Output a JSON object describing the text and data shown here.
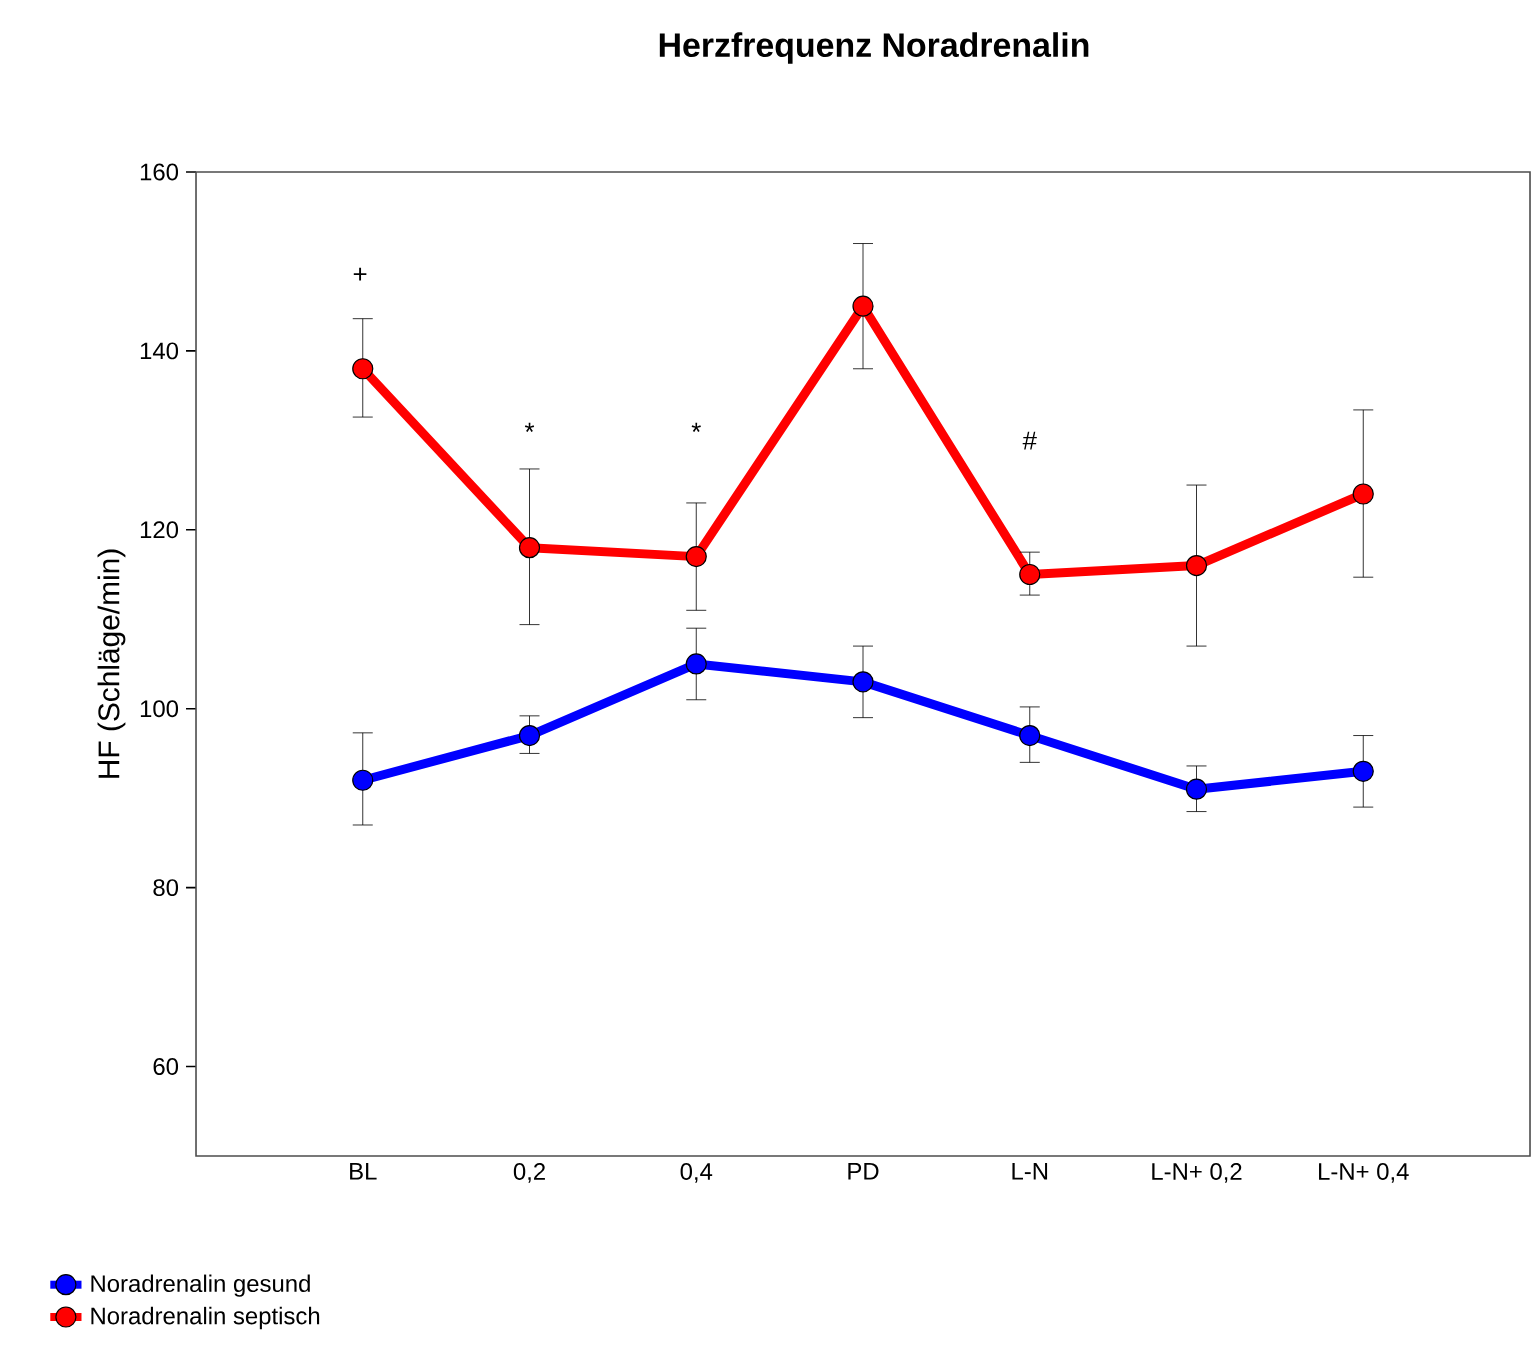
{
  "chart_data": {
    "type": "line",
    "title": "Herzfrequenz Noradrenalin",
    "ylabel": "HF (Schläge/min)",
    "categories": [
      "BL",
      "0,2",
      "0,4",
      "PD",
      "L-N",
      "L-N+ 0,2",
      "L-N+ 0,4"
    ],
    "series": [
      {
        "name": "Noradrenalin gesund",
        "color": "#0000ff",
        "values": [
          92,
          97,
          105,
          103,
          97,
          91,
          93
        ],
        "errors": [
          [
            87,
            97.3
          ],
          [
            95,
            99.2
          ],
          [
            101,
            109
          ],
          [
            99,
            107
          ],
          [
            94,
            100.2
          ],
          [
            88.5,
            93.6
          ],
          [
            89,
            97
          ]
        ]
      },
      {
        "name": "Noradrenalin septisch",
        "color": "#ff0000",
        "values": [
          138,
          118,
          117,
          145,
          115,
          116,
          124
        ],
        "errors": [
          [
            132.6,
            143.6
          ],
          [
            109.4,
            126.8
          ],
          [
            111,
            123
          ],
          [
            138,
            152
          ],
          [
            112.7,
            117.5
          ],
          [
            107,
            125
          ],
          [
            114.7,
            133.4
          ]
        ]
      }
    ],
    "ylim": [
      50,
      160
    ],
    "yticks": [
      60,
      80,
      100,
      120,
      140,
      160
    ],
    "annotations": [
      "+",
      "*",
      "*",
      "#"
    ],
    "grid": false,
    "legend": "bottom left",
    "marker": "circle",
    "line_style": "solid"
  }
}
